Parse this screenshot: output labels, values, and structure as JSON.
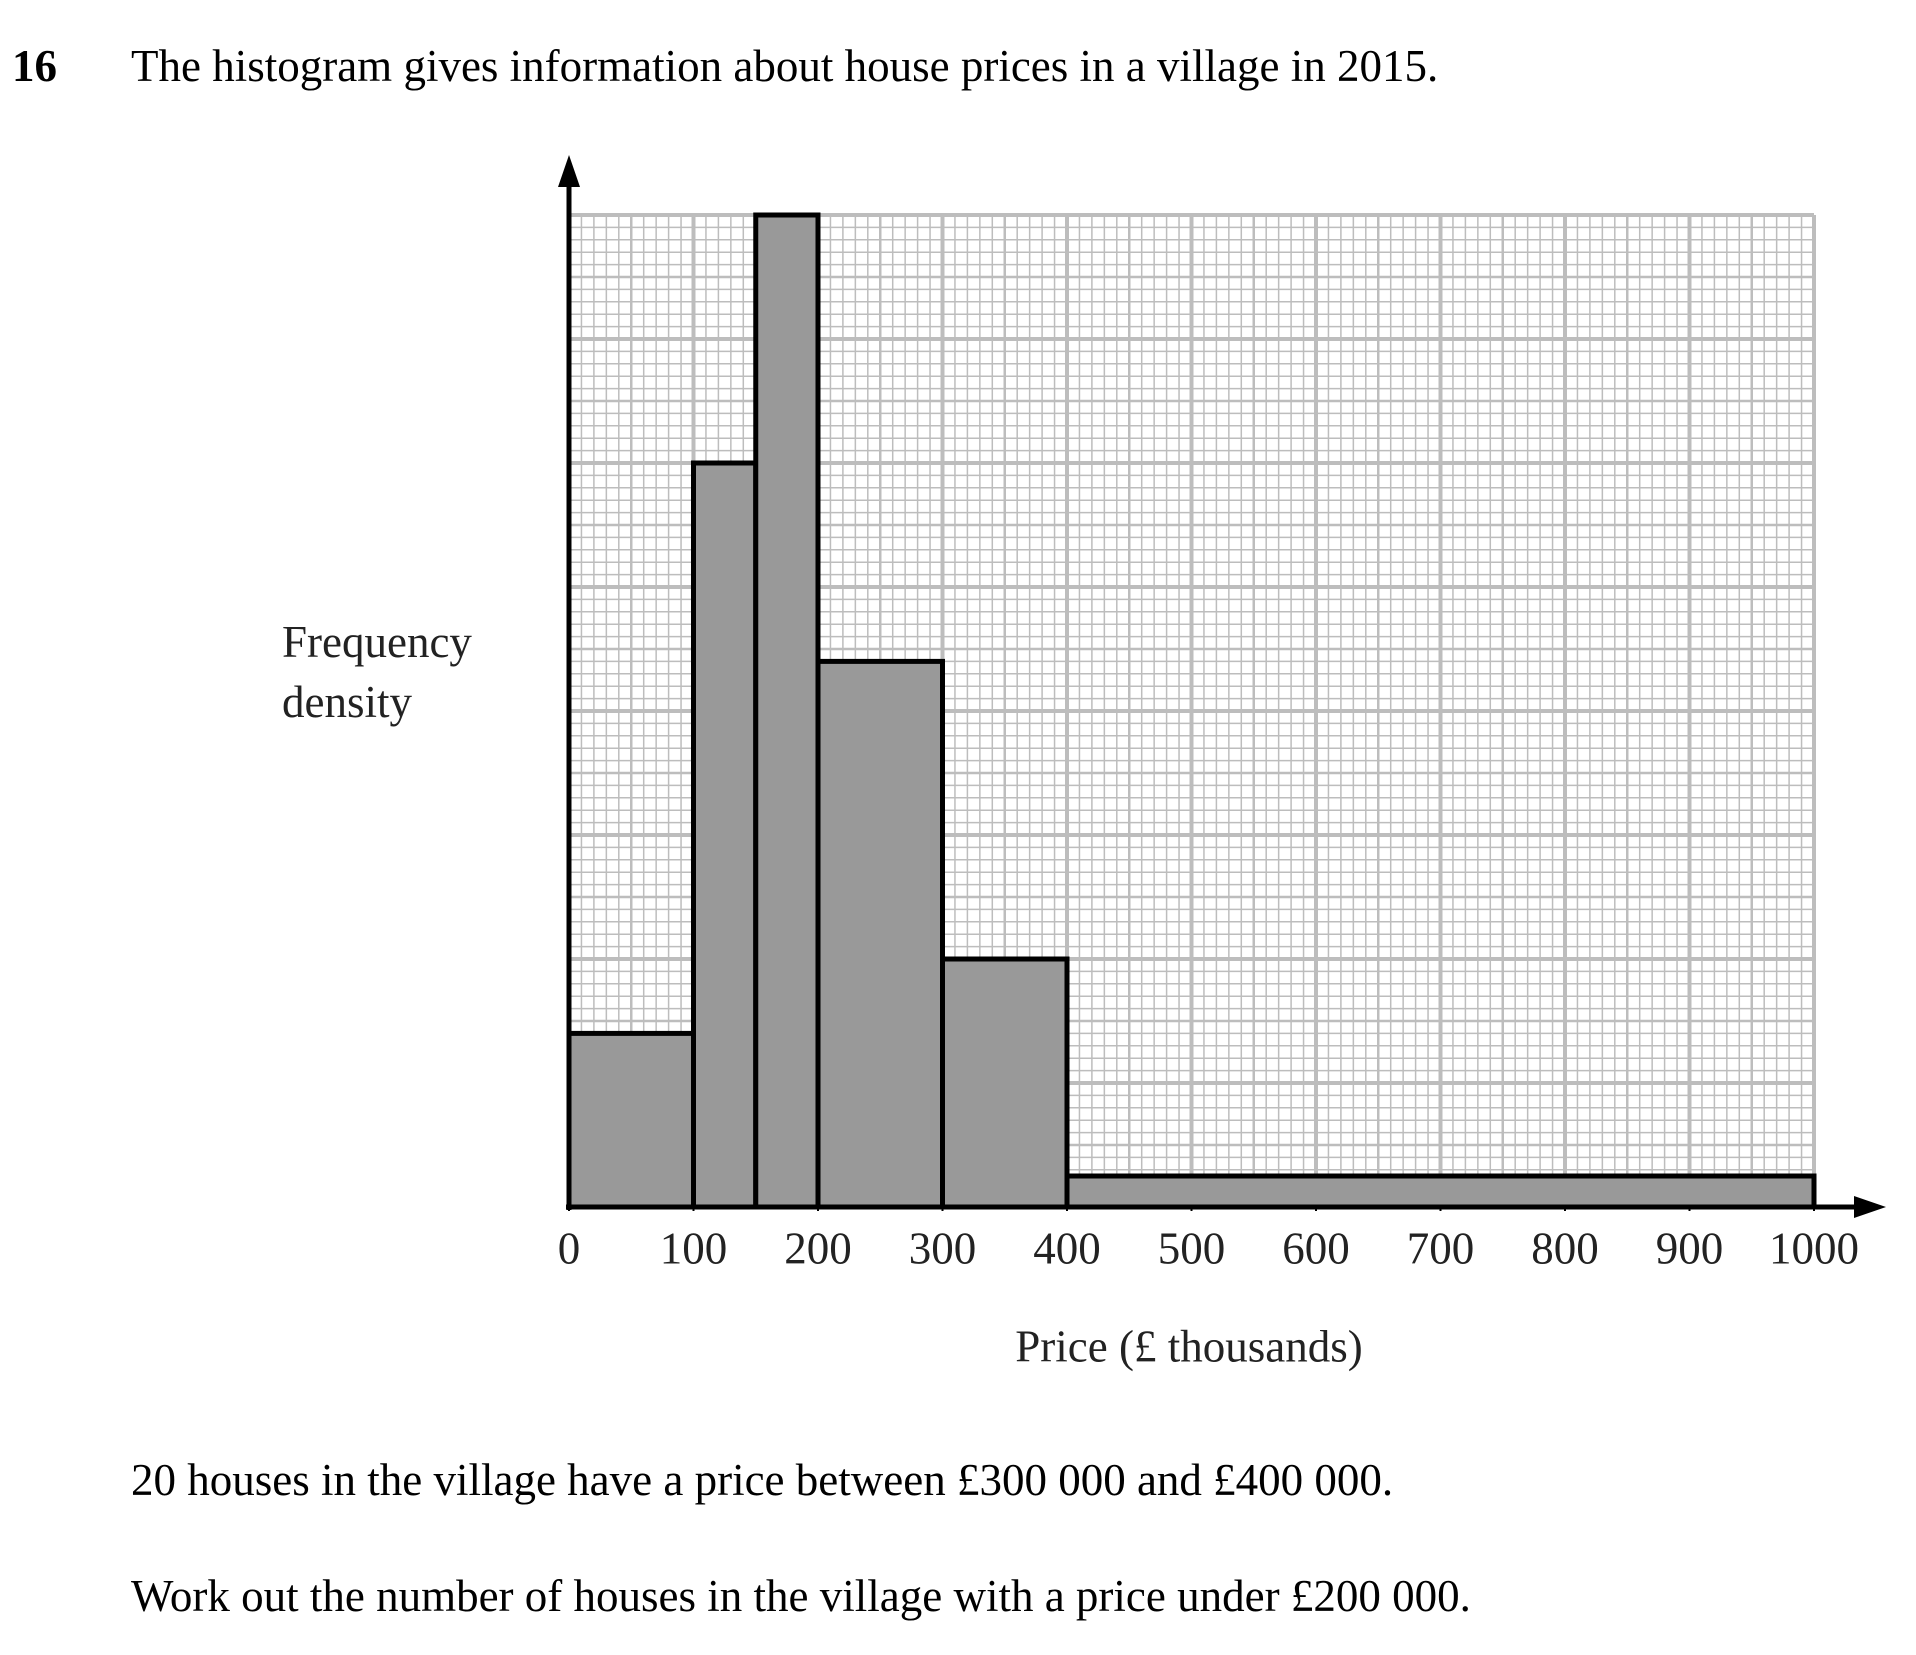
{
  "question": {
    "number": "16",
    "intro": "The histogram gives information about house prices in a village in 2015.",
    "given": "20 houses in the village have a price between £300 000 and £400 000.",
    "task": "Work out the number of houses in the village with a price under £200 000."
  },
  "chart_data": {
    "type": "histogram",
    "y_label": "Frequency density",
    "x_label": "Price (£ thousands)",
    "bins": [
      0,
      100,
      150,
      200,
      300,
      400,
      1000
    ],
    "values": [
      0.14,
      0.6,
      0.8,
      0.44,
      0.2,
      0.025
    ],
    "color": "#999999",
    "xlim": [
      0,
      1000
    ],
    "ylim": [
      0,
      0.8
    ],
    "xticks": [
      0,
      100,
      200,
      300,
      400,
      500,
      600,
      700,
      800,
      900,
      1000
    ],
    "grid": true
  }
}
